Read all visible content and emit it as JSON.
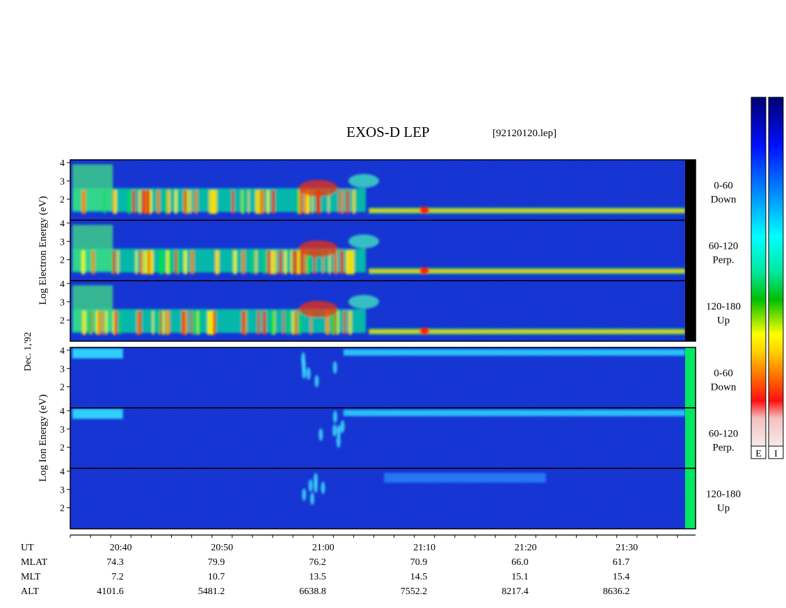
{
  "title": "EXOS-D LEP",
  "file_label": "[92120120.lep]",
  "date_label": "Dec. 1,'92",
  "colorbar_labels": [
    "E",
    "I"
  ],
  "chart_data": {
    "type": "heatmap",
    "time_range": [
      "20:35",
      "21:35"
    ],
    "y_range": [
      1,
      4
    ],
    "groups": [
      {
        "id": "electron",
        "ylabel": "Log  Electron  Energy (eV)",
        "panels": [
          {
            "angle_label": "0-60",
            "direction_label": "Down"
          },
          {
            "angle_label": "60-120",
            "direction_label": "Perp."
          },
          {
            "angle_label": "120-180",
            "direction_label": "Up"
          }
        ]
      },
      {
        "id": "ion",
        "ylabel": "Log  Ion  Energy (eV)",
        "panels": [
          {
            "angle_label": "0-60",
            "direction_label": "Down"
          },
          {
            "angle_label": "60-120",
            "direction_label": "Perp."
          },
          {
            "angle_label": "120-180",
            "direction_label": "Up"
          }
        ]
      }
    ],
    "y_ticks": [
      "4",
      "3",
      "2"
    ],
    "x_ticks": [
      "20:40",
      "20:50",
      "21:00",
      "21:10",
      "21:20",
      "21:30"
    ],
    "x_tick_minutes": [
      5,
      15,
      25,
      35,
      45,
      55
    ],
    "ephemeris": {
      "row_labels": [
        "UT",
        "MLAT",
        "MLT",
        "ALT"
      ],
      "MLAT": [
        "74.3",
        "79.9",
        "76.2",
        "70.9",
        "66.0",
        "61.7"
      ],
      "MLT": [
        "7.2",
        "10.7",
        "13.5",
        "14.5",
        "15.1",
        "15.4"
      ],
      "ALT": [
        "4101.6",
        "5481.2",
        "6638.8",
        "7552.2",
        "8217.4",
        "8636.2"
      ]
    },
    "colormap": [
      "#f6d8d8",
      "#ff0000",
      "#ff8000",
      "#ffff00",
      "#00d000",
      "#00ffff",
      "#0080ff",
      "#0000ff",
      "#000080"
    ]
  }
}
